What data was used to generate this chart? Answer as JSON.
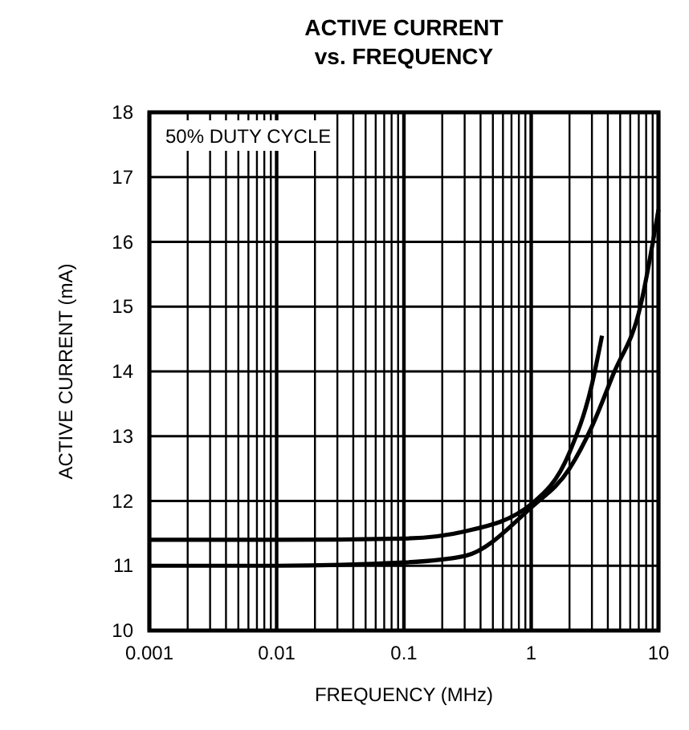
{
  "chart_data": {
    "type": "line",
    "title": "ACTIVE CURRENT\nvs. FREQUENCY",
    "xlabel": "FREQUENCY (MHz)",
    "ylabel": "ACTIVE CURRENT (mA)",
    "log": "x",
    "xlim": [
      0.001,
      10
    ],
    "ylim": [
      10,
      18
    ],
    "xticks": [
      {
        "value": 0.001,
        "label": "0.001"
      },
      {
        "value": 0.002,
        "label": null
      },
      {
        "value": 0.003,
        "label": null
      },
      {
        "value": 0.004,
        "label": null
      },
      {
        "value": 0.005,
        "label": null
      },
      {
        "value": 0.006,
        "label": null
      },
      {
        "value": 0.007,
        "label": null
      },
      {
        "value": 0.008,
        "label": null
      },
      {
        "value": 0.009,
        "label": null
      },
      {
        "value": 0.01,
        "label": "0.01"
      },
      {
        "value": 0.02,
        "label": null
      },
      {
        "value": 0.03,
        "label": null
      },
      {
        "value": 0.04,
        "label": null
      },
      {
        "value": 0.05,
        "label": null
      },
      {
        "value": 0.06,
        "label": null
      },
      {
        "value": 0.07,
        "label": null
      },
      {
        "value": 0.08,
        "label": null
      },
      {
        "value": 0.09,
        "label": null
      },
      {
        "value": 0.1,
        "label": "0.1"
      },
      {
        "value": 0.2,
        "label": null
      },
      {
        "value": 0.3,
        "label": null
      },
      {
        "value": 0.4,
        "label": null
      },
      {
        "value": 0.5,
        "label": null
      },
      {
        "value": 0.6,
        "label": null
      },
      {
        "value": 0.7,
        "label": null
      },
      {
        "value": 0.8,
        "label": null
      },
      {
        "value": 0.9,
        "label": null
      },
      1,
      {
        "value": 2,
        "label": null
      },
      {
        "value": 3,
        "label": null
      },
      {
        "value": 4,
        "label": null
      },
      {
        "value": 5,
        "label": null
      },
      {
        "value": 6,
        "label": null
      },
      {
        "value": 7,
        "label": null
      },
      {
        "value": 8,
        "label": null
      },
      {
        "value": 9,
        "label": null
      },
      10
    ],
    "yticks": [
      10,
      11,
      12,
      13,
      14,
      15,
      16,
      17,
      18
    ],
    "grid": true,
    "line_style": "solid",
    "marker": "none",
    "annotations": [
      "50% DUTY CYCLE"
    ],
    "series": [
      {
        "color": "#000000",
        "x": [
          0.001,
          0.01,
          0.1,
          0.3,
          1,
          2,
          3,
          3.6
        ],
        "values": [
          11.4,
          11.4,
          11.42,
          11.53,
          11.95,
          12.75,
          13.8,
          14.55
        ]
      },
      {
        "color": "#000000",
        "x": [
          0.001,
          0.01,
          0.1,
          0.3,
          1,
          2,
          3,
          4.4,
          7.2,
          10
        ],
        "values": [
          11,
          11,
          11.05,
          11.15,
          11.9,
          12.5,
          13.15,
          13.95,
          15,
          16.5
        ]
      }
    ]
  }
}
